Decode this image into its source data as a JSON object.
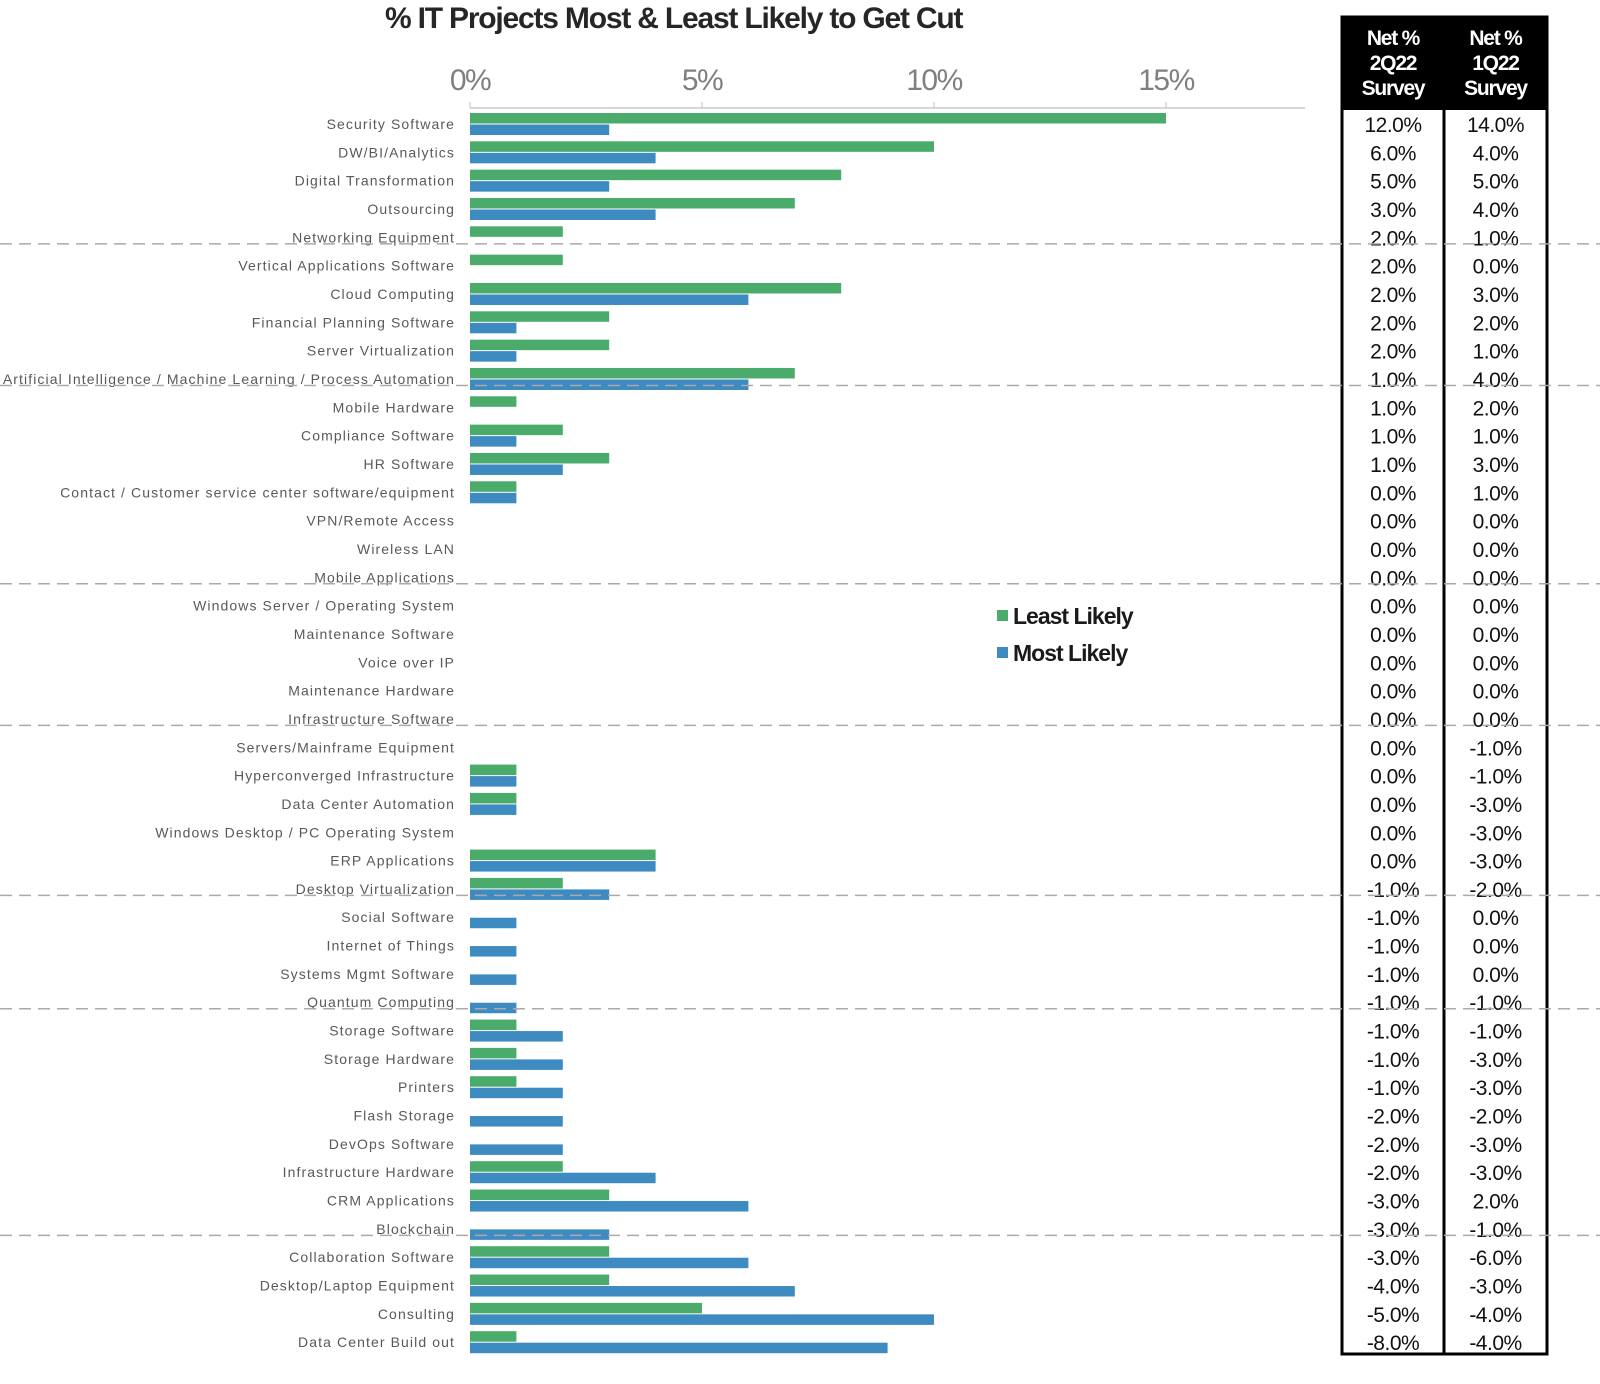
{
  "chart_data": {
    "type": "bar",
    "orientation": "horizontal",
    "title": "% IT Projects Most & Least Likely to Get Cut",
    "xlabel": "",
    "ylabel": "",
    "xlim": [
      0,
      18
    ],
    "x_ticks": [
      0,
      5,
      10,
      15
    ],
    "x_tick_labels": [
      "0%",
      "5%",
      "10%",
      "15%"
    ],
    "x_axis_position": "top",
    "grid": false,
    "legend_position": "center-right",
    "colors": {
      "least_likely": "#4aab6a",
      "most_likely": "#3d8bc0",
      "separator": "#aaaaaa",
      "axis": "#cccccc"
    },
    "categories": [
      "Security Software",
      "DW/BI/Analytics",
      "Digital Transformation",
      "Outsourcing",
      "Networking Equipment",
      "Vertical Applications Software",
      "Cloud Computing",
      "Financial Planning Software",
      "Server Virtualization",
      "Artificial Intelligence / Machine Learning / Process Automation",
      "Mobile Hardware",
      "Compliance Software",
      "HR Software",
      "Contact / Customer service center software/equipment",
      "VPN/Remote Access",
      "Wireless LAN",
      "Mobile Applications",
      "Windows Server / Operating System",
      "Maintenance Software",
      "Voice over IP",
      "Maintenance Hardware",
      "Infrastructure Software",
      "Servers/Mainframe Equipment",
      "Hyperconverged Infrastructure",
      "Data Center Automation",
      "Windows Desktop / PC Operating System",
      "ERP Applications",
      "Desktop Virtualization",
      "Social Software",
      "Internet of Things",
      "Systems Mgmt Software",
      "Quantum Computing",
      "Storage Software",
      "Storage Hardware",
      "Printers",
      "Flash Storage",
      "DevOps Software",
      "Infrastructure Hardware",
      "CRM Applications",
      "Blockchain",
      "Collaboration Software",
      "Desktop/Laptop Equipment",
      "Consulting",
      "Data Center Build out"
    ],
    "series": [
      {
        "name": "Least Likely",
        "color": "#4aab6a",
        "values": [
          15,
          10,
          8,
          7,
          2,
          2,
          8,
          3,
          3,
          7,
          1,
          2,
          3,
          1,
          0,
          0,
          0,
          0,
          0,
          0,
          0,
          0,
          0,
          1,
          1,
          0,
          4,
          2,
          0,
          0,
          0,
          0,
          1,
          1,
          1,
          0,
          0,
          2,
          3,
          0,
          3,
          3,
          5,
          1
        ]
      },
      {
        "name": "Most Likely",
        "color": "#3d8bc0",
        "values": [
          3,
          4,
          3,
          4,
          0,
          0,
          6,
          1,
          1,
          6,
          0,
          1,
          2,
          1,
          0,
          0,
          0,
          0,
          0,
          0,
          0,
          0,
          0,
          1,
          1,
          0,
          4,
          3,
          1,
          1,
          1,
          1,
          2,
          2,
          2,
          2,
          2,
          4,
          6,
          3,
          6,
          7,
          10,
          9
        ]
      }
    ],
    "group_separators_after": [
      5,
      10,
      17,
      22,
      28,
      32,
      40
    ],
    "table": {
      "columns": [
        "Net %\n2Q22\nSurvey",
        "Net %\n1Q22\nSurvey"
      ],
      "column_header_lines": [
        [
          "Net %",
          "2Q22",
          "Survey"
        ],
        [
          "Net %",
          "1Q22",
          "Survey"
        ]
      ],
      "net_2q22": [
        "12.0%",
        "6.0%",
        "5.0%",
        "3.0%",
        "2.0%",
        "2.0%",
        "2.0%",
        "2.0%",
        "2.0%",
        "1.0%",
        "1.0%",
        "1.0%",
        "1.0%",
        "0.0%",
        "0.0%",
        "0.0%",
        "0.0%",
        "0.0%",
        "0.0%",
        "0.0%",
        "0.0%",
        "0.0%",
        "0.0%",
        "0.0%",
        "0.0%",
        "0.0%",
        "0.0%",
        "-1.0%",
        "-1.0%",
        "-1.0%",
        "-1.0%",
        "-1.0%",
        "-1.0%",
        "-1.0%",
        "-1.0%",
        "-2.0%",
        "-2.0%",
        "-2.0%",
        "-3.0%",
        "-3.0%",
        "-3.0%",
        "-4.0%",
        "-5.0%",
        "-8.0%"
      ],
      "net_1q22": [
        "14.0%",
        "4.0%",
        "5.0%",
        "4.0%",
        "1.0%",
        "0.0%",
        "3.0%",
        "2.0%",
        "1.0%",
        "4.0%",
        "2.0%",
        "1.0%",
        "3.0%",
        "1.0%",
        "0.0%",
        "0.0%",
        "0.0%",
        "0.0%",
        "0.0%",
        "0.0%",
        "0.0%",
        "0.0%",
        "-1.0%",
        "-1.0%",
        "-3.0%",
        "-3.0%",
        "-3.0%",
        "-2.0%",
        "0.0%",
        "0.0%",
        "0.0%",
        "-1.0%",
        "-1.0%",
        "-3.0%",
        "-3.0%",
        "-2.0%",
        "-3.0%",
        "-3.0%",
        "2.0%",
        "-1.0%",
        "-6.0%",
        "-3.0%",
        "-4.0%",
        "-4.0%"
      ]
    }
  }
}
